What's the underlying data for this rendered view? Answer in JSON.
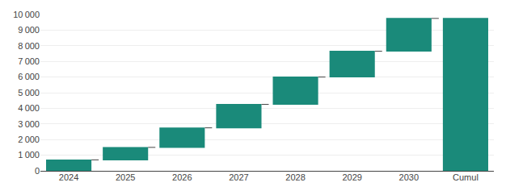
{
  "chart_data": {
    "type": "waterfall",
    "categories": [
      "2024",
      "2025",
      "2026",
      "2027",
      "2028",
      "2029",
      "2030",
      "Cumul"
    ],
    "values": [
      700,
      800,
      1250,
      1500,
      1750,
      1650,
      2100,
      9750
    ],
    "color": "#1a8a7a",
    "ylim": [
      0,
      10000
    ],
    "yticks": [
      0,
      {
        "value": 1000,
        "label": "1 000"
      },
      {
        "value": 2000,
        "label": "2 000"
      },
      {
        "value": 3000,
        "label": "3 000"
      },
      {
        "value": 4000,
        "label": "4 000"
      },
      {
        "value": 5000,
        "label": "5 000"
      },
      {
        "value": 6000,
        "label": "6 000"
      },
      {
        "value": 7000,
        "label": "7 000"
      },
      {
        "value": 8000,
        "label": "8 000"
      },
      {
        "value": 9000,
        "label": "9 000"
      },
      {
        "value": 10000,
        "label": "10 000"
      }
    ],
    "grid": true
  }
}
